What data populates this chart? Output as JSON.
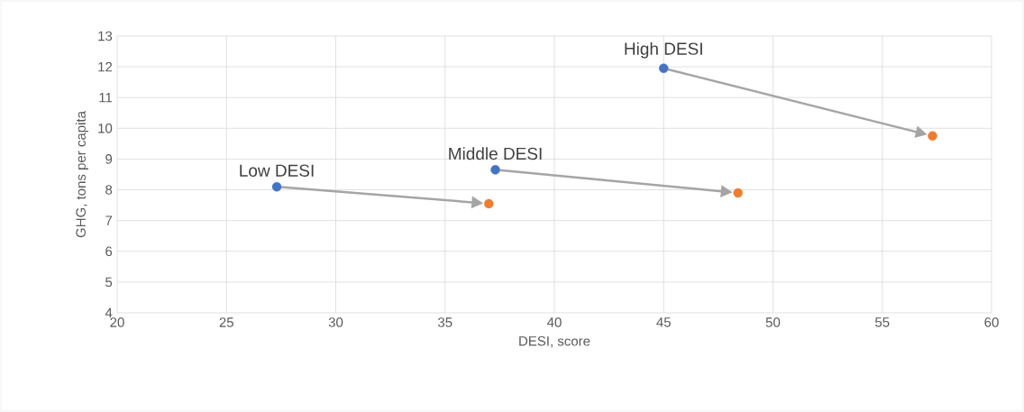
{
  "chart_data": {
    "type": "scatter",
    "xlabel": "DESI, score",
    "ylabel": "GHG, tons per capita",
    "series": [
      {
        "color": "#4472c4",
        "x": [
          27.3,
          37.3,
          45.0
        ],
        "values": [
          8.1,
          8.65,
          11.95
        ]
      },
      {
        "color": "#ed7d31",
        "x": [
          37.0,
          48.4,
          57.3
        ],
        "values": [
          7.55,
          7.9,
          9.75
        ]
      }
    ],
    "annotations": [
      {
        "text": "Low DESI",
        "x": 27.3,
        "y": 8.1
      },
      {
        "text": "Middle DESI",
        "x": 37.3,
        "y": 8.65
      },
      {
        "text": "High DESI",
        "x": 45.0,
        "y": 11.95
      }
    ],
    "xlim": [
      20,
      60
    ],
    "xticks": [
      20,
      25,
      30,
      35,
      40,
      45,
      50,
      55,
      60
    ],
    "ylim": [
      4,
      13
    ],
    "yticks": [
      4,
      5,
      6,
      7,
      8,
      9,
      10,
      11,
      12,
      13
    ],
    "grid": true,
    "marker": "circle"
  }
}
